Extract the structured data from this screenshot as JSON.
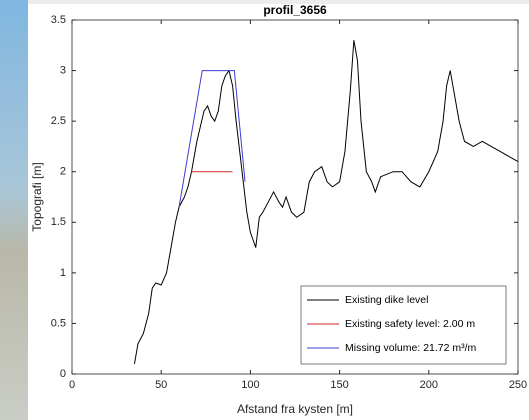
{
  "chart_data": {
    "type": "line",
    "title": "profil_3656",
    "x_label": "Afstand fra kysten [m]",
    "y_label": "Topografi [m]",
    "xlim": [
      0,
      250
    ],
    "xticks": [
      0,
      50,
      100,
      150,
      200,
      250
    ],
    "ylim": [
      0,
      3.5
    ],
    "yticks": [
      0,
      0.5,
      1,
      1.5,
      2,
      2.5,
      3,
      3.5
    ],
    "grid": false,
    "legend_position": "lower-right",
    "series": [
      {
        "name": "Existing dike level",
        "color": "#000000",
        "x": [
          35,
          37,
          40,
          43,
          45,
          47,
          50,
          53,
          55,
          58,
          60,
          63,
          65,
          67,
          68,
          70,
          72,
          74,
          76,
          78,
          80,
          82,
          84,
          86,
          88,
          90,
          92,
          94,
          96,
          98,
          100,
          102,
          103,
          105,
          107,
          110,
          113,
          116,
          118,
          120,
          123,
          126,
          130,
          133,
          136,
          140,
          143,
          146,
          150,
          153,
          156,
          158,
          160,
          162,
          165,
          168,
          170,
          173,
          180,
          185,
          190,
          195,
          200,
          205,
          208,
          210,
          212,
          214,
          217,
          220,
          225,
          230,
          235,
          240,
          245,
          250
        ],
        "values": [
          0.1,
          0.3,
          0.4,
          0.6,
          0.85,
          0.9,
          0.88,
          1.0,
          1.2,
          1.5,
          1.65,
          1.75,
          1.85,
          2.0,
          2.1,
          2.3,
          2.45,
          2.6,
          2.65,
          2.55,
          2.5,
          2.6,
          2.85,
          2.95,
          3.0,
          2.85,
          2.5,
          2.2,
          1.9,
          1.6,
          1.4,
          1.3,
          1.25,
          1.55,
          1.6,
          1.7,
          1.8,
          1.7,
          1.65,
          1.75,
          1.6,
          1.55,
          1.6,
          1.9,
          2.0,
          2.05,
          1.9,
          1.85,
          1.9,
          2.2,
          2.8,
          3.3,
          3.1,
          2.5,
          2.0,
          1.9,
          1.8,
          1.95,
          2.0,
          2.0,
          1.9,
          1.85,
          2.0,
          2.2,
          2.5,
          2.85,
          3.0,
          2.8,
          2.5,
          2.3,
          2.25,
          2.3,
          2.25,
          2.2,
          2.15,
          2.1
        ]
      },
      {
        "name": "Existing safety level: 2.00 m",
        "color": "#d62728",
        "x": [
          67,
          90
        ],
        "values": [
          2.0,
          2.0
        ]
      },
      {
        "name": "Missing volume: 21.72 m³/m",
        "color": "#3b3bd6",
        "x": [
          60,
          73,
          91,
          97
        ],
        "values": [
          1.65,
          3.0,
          3.0,
          1.9
        ]
      }
    ]
  }
}
